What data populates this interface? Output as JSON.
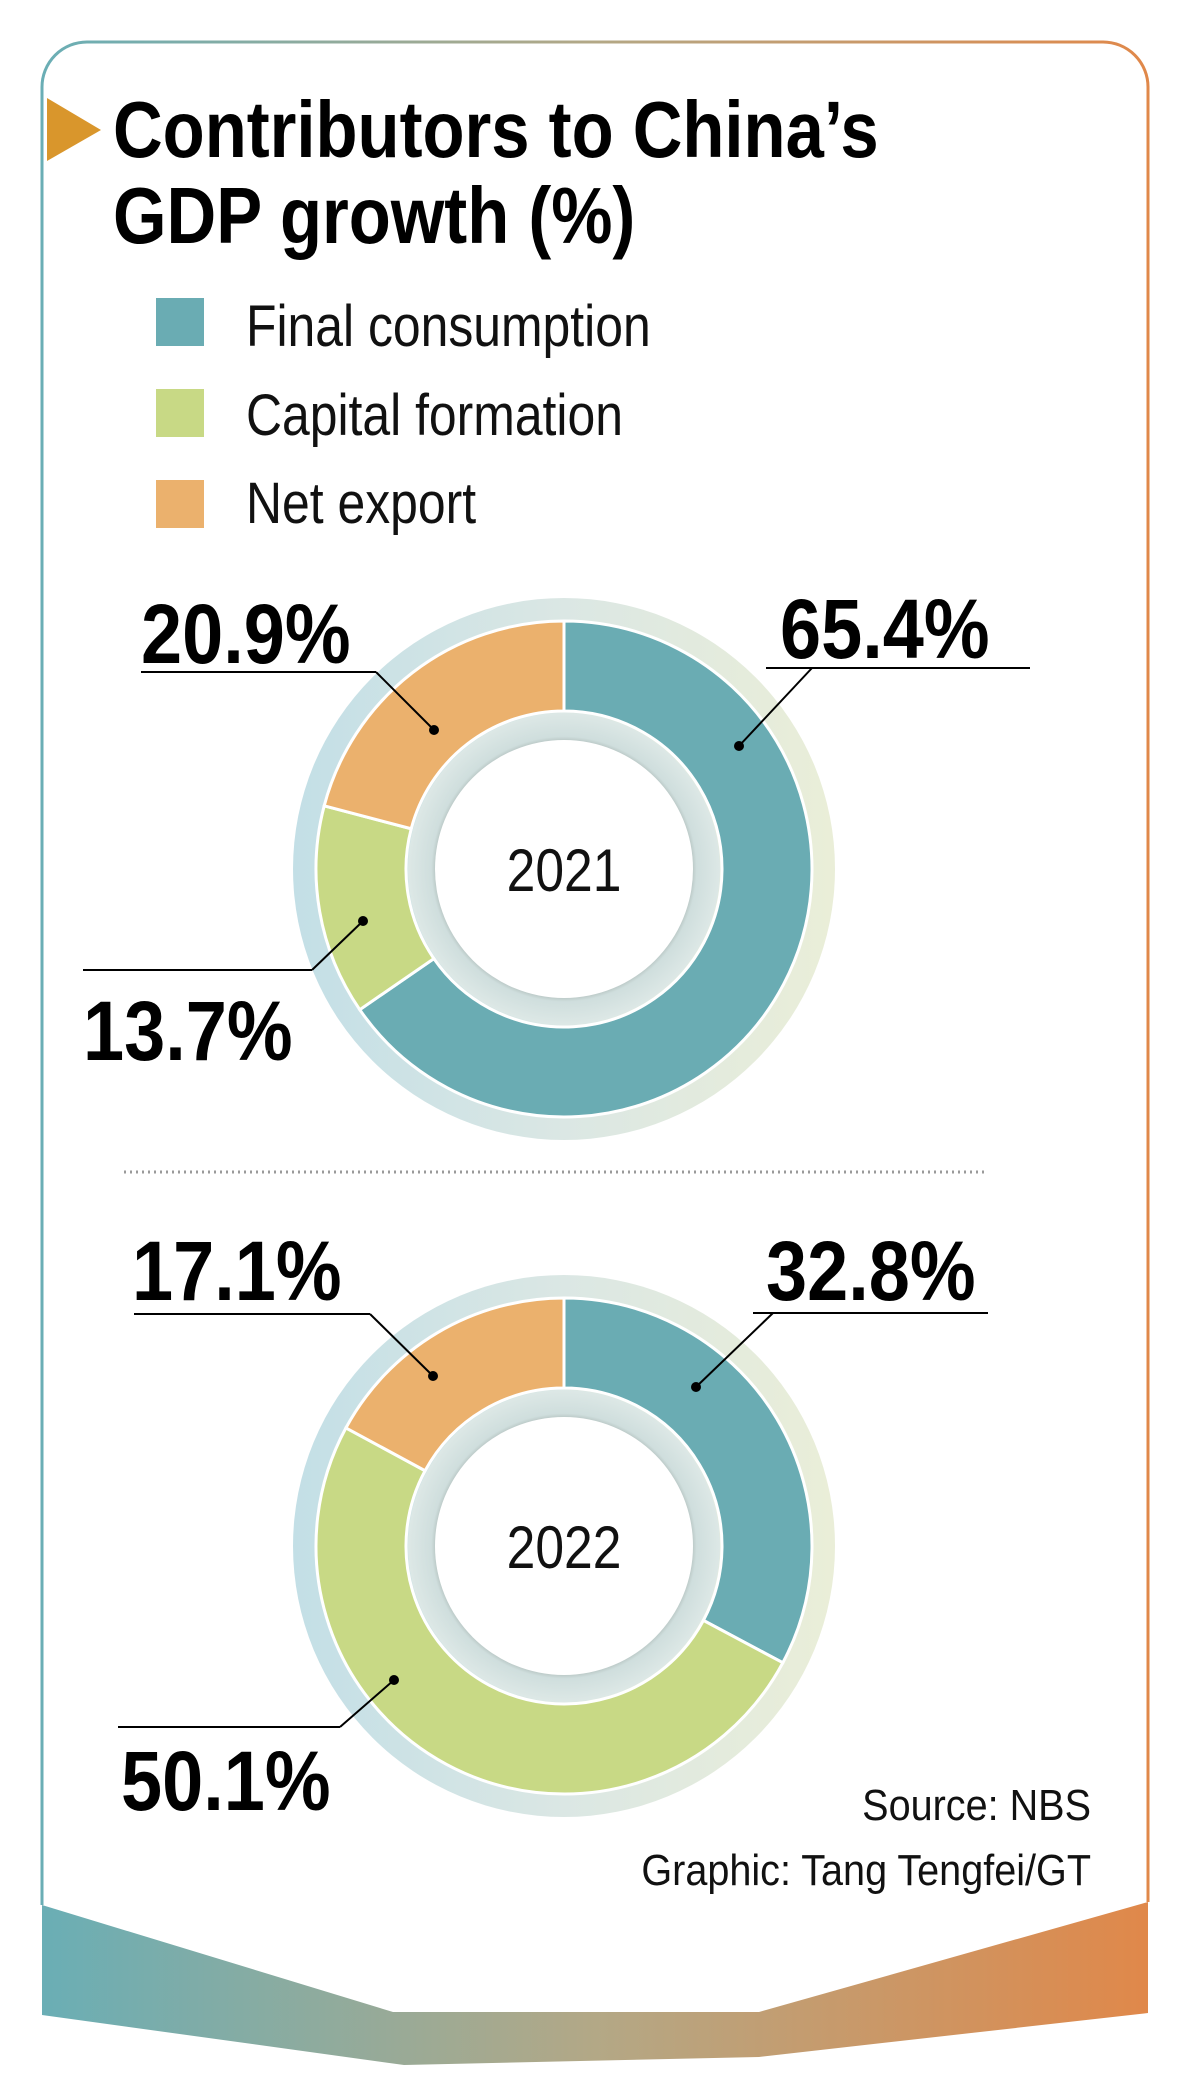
{
  "title_line1": "Contributors to China’s",
  "title_line2": "GDP growth (%)",
  "legend": [
    {
      "label": "Final consumption",
      "color": "#6aacb3"
    },
    {
      "label": "Capital formation",
      "color": "#c8d985"
    },
    {
      "label": "Net export",
      "color": "#ebb16d"
    }
  ],
  "source": "Source: NBS",
  "credit": "Graphic: Tang Tengfei/GT",
  "colors": {
    "frame_start": "#6aaeb5",
    "frame_end": "#e0884a",
    "accent": "#d9962c"
  },
  "chart_data": [
    {
      "type": "pie",
      "title": "2021",
      "categories": [
        "Final consumption",
        "Capital formation",
        "Net export"
      ],
      "values": [
        65.4,
        13.7,
        20.9
      ],
      "labels": [
        "65.4%",
        "13.7%",
        "20.9%"
      ],
      "unit": "%"
    },
    {
      "type": "pie",
      "title": "2022",
      "categories": [
        "Final consumption",
        "Capital formation",
        "Net export"
      ],
      "values": [
        32.8,
        50.1,
        17.1
      ],
      "labels": [
        "32.8%",
        "50.1%",
        "17.1%"
      ],
      "unit": "%"
    }
  ]
}
